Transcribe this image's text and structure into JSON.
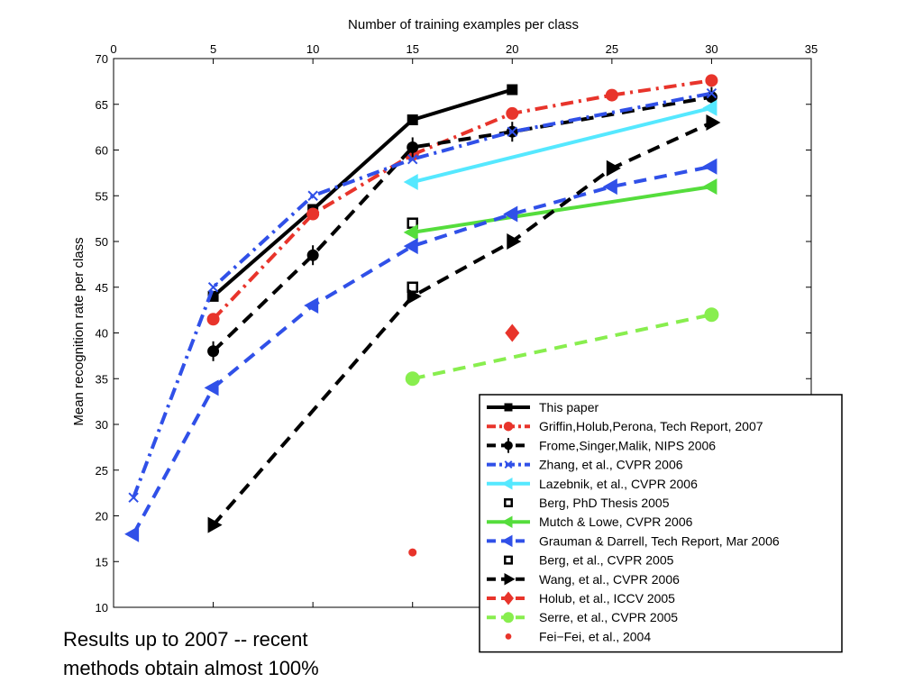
{
  "chart_data": {
    "type": "line",
    "xlabel": "Number of training examples per class",
    "ylabel": "Mean recognition rate per class",
    "xlim": [
      0,
      35
    ],
    "ylim": [
      10,
      70
    ],
    "xticks": [
      0,
      5,
      10,
      15,
      20,
      25,
      30,
      35
    ],
    "yticks": [
      10,
      15,
      20,
      25,
      30,
      35,
      40,
      45,
      50,
      55,
      60,
      65,
      70
    ],
    "x_axis_position": "top",
    "grid": false,
    "legend_position": "bottom-right",
    "series": [
      {
        "name": "This paper",
        "color": "#000000",
        "dash": "solid",
        "width": 4,
        "marker": "filled-square",
        "x": [
          5,
          10,
          15,
          20
        ],
        "y": [
          44,
          53.5,
          63.3,
          66.6
        ]
      },
      {
        "name": "Griffin,Holub,Perona, Tech Report, 2007",
        "color": "#e8342b",
        "dash": "dashdot",
        "width": 4,
        "marker": "circle",
        "x": [
          5,
          10,
          15,
          20,
          25,
          30
        ],
        "y": [
          41.5,
          53,
          59.5,
          64,
          66,
          67.6
        ]
      },
      {
        "name": "Frome,Singer,Malik, NIPS 2006",
        "color": "#000000",
        "dash": "dash",
        "width": 4,
        "marker": "circle-bar",
        "x": [
          5,
          10,
          15,
          20,
          30
        ],
        "y": [
          38,
          48.5,
          60.3,
          62,
          65.8
        ]
      },
      {
        "name": "Zhang, et al., CVPR 2006",
        "color": "#3050e8",
        "dash": "dashdot",
        "width": 4,
        "marker": "cross",
        "x": [
          1,
          5,
          10,
          15,
          20,
          30
        ],
        "y": [
          22,
          45,
          55,
          59,
          62,
          66.2
        ]
      },
      {
        "name": "Lazebnik, et al., CVPR 2006",
        "color": "#55e8ff",
        "dash": "solid",
        "width": 4,
        "marker": "triangle-left",
        "x": [
          15,
          30
        ],
        "y": [
          56.5,
          64.6
        ]
      },
      {
        "name": "Berg, PhD Thesis 2005",
        "color": "#000000",
        "dash": "none",
        "width": 0,
        "marker": "open-square",
        "x": [
          15
        ],
        "y": [
          52
        ]
      },
      {
        "name": "Mutch & Lowe, CVPR 2006",
        "color": "#55dd3c",
        "dash": "solid",
        "width": 4,
        "marker": "triangle-left",
        "x": [
          15,
          30
        ],
        "y": [
          51,
          56
        ]
      },
      {
        "name": "Grauman & Darrell, Tech Report, Mar 2006",
        "color": "#3050e8",
        "dash": "dash",
        "width": 4,
        "marker": "triangle-left",
        "x": [
          1,
          5,
          10,
          15,
          20,
          25,
          30
        ],
        "y": [
          18,
          34,
          43,
          49.5,
          53,
          56,
          58.2
        ]
      },
      {
        "name": "Berg, et al., CVPR 2005",
        "color": "#000000",
        "dash": "none",
        "width": 0,
        "marker": "open-square",
        "x": [
          15
        ],
        "y": [
          45
        ]
      },
      {
        "name": "Wang, et al., CVPR 2006",
        "color": "#000000",
        "dash": "dash",
        "width": 4,
        "marker": "triangle-right",
        "x": [
          5,
          15,
          20,
          25,
          30
        ],
        "y": [
          19,
          44,
          50,
          58,
          63
        ]
      },
      {
        "name": "Holub, et al., ICCV 2005",
        "color": "#e8342b",
        "dash": "dash",
        "width": 4,
        "marker": "diamond",
        "x": [
          20
        ],
        "y": [
          40
        ]
      },
      {
        "name": "Serre, et al., CVPR 2005",
        "color": "#88ee4e",
        "dash": "dash",
        "width": 4,
        "marker": "big-circle",
        "x": [
          15,
          30
        ],
        "y": [
          35,
          42
        ]
      },
      {
        "name": "Fei−Fei, et al., 2004",
        "color": "#e8342b",
        "dash": "none",
        "width": 0,
        "marker": "dot",
        "x": [
          15
        ],
        "y": [
          16
        ]
      }
    ]
  },
  "caption": {
    "line1": "Results up to 2007  -- recent",
    "line2": "methods obtain almost 100%"
  }
}
